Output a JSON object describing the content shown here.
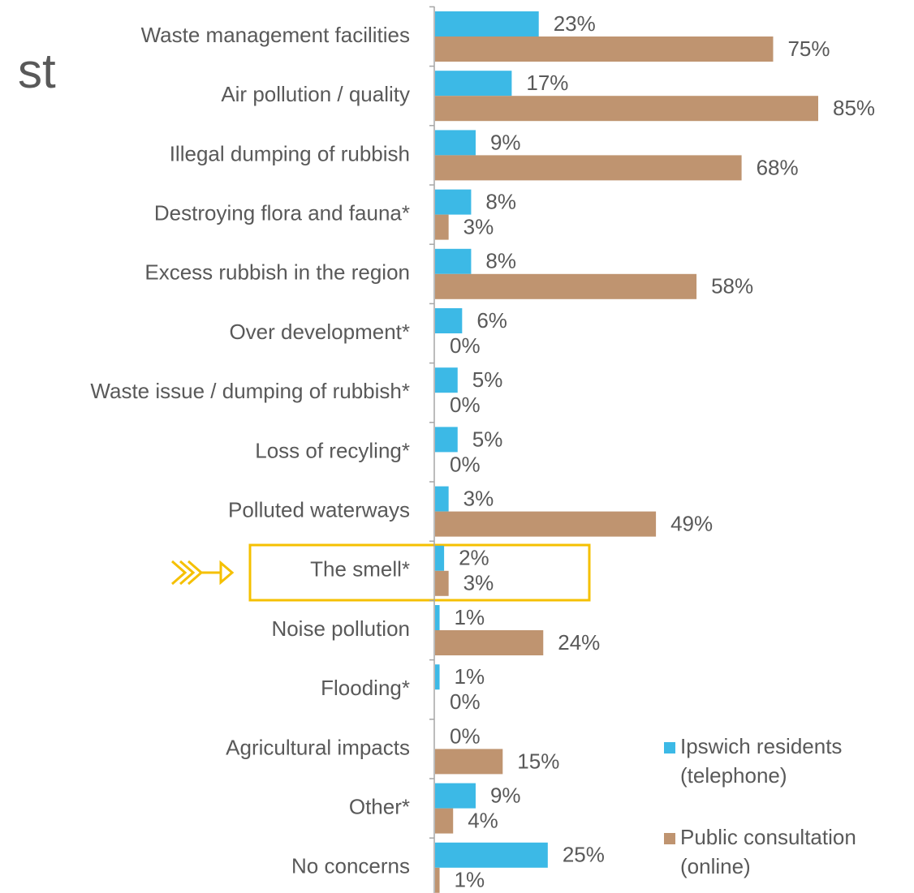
{
  "chart_data": {
    "type": "bar",
    "orientation": "horizontal",
    "title": "st",
    "categories": [
      "Waste management facilities",
      "Air pollution / quality",
      "Illegal dumping of rubbish",
      "Destroying flora and fauna*",
      "Excess rubbish in the region",
      "Over development*",
      "Waste issue / dumping of rubbish*",
      "Loss of recyling*",
      "Polluted waterways",
      "The smell*",
      "Noise pollution",
      "Flooding*",
      "Agricultural impacts",
      "Other*",
      "No concerns"
    ],
    "series": [
      {
        "name": "Ipswich residents (telephone)",
        "color": "#3cb9e6",
        "values": [
          23,
          17,
          9,
          8,
          8,
          6,
          5,
          5,
          3,
          2,
          1,
          1,
          0,
          9,
          25
        ],
        "value_labels": [
          "23%",
          "17%",
          "9%",
          "8%",
          "8%",
          "6%",
          "5%",
          "5%",
          "3%",
          "2%",
          "1%",
          "1%",
          "0%",
          "9%",
          "25%"
        ]
      },
      {
        "name": "Public consultation (online)",
        "color": "#bf9470",
        "values": [
          75,
          85,
          68,
          3,
          58,
          0,
          0,
          0,
          49,
          3,
          24,
          0,
          15,
          4,
          1
        ],
        "value_labels": [
          "75%",
          "85%",
          "68%",
          "3%",
          "58%",
          "0%",
          "0%",
          "0%",
          "49%",
          "3%",
          "24%",
          "0%",
          "15%",
          "4%",
          "1%"
        ]
      }
    ],
    "legend": "bottom-right"
  }
}
